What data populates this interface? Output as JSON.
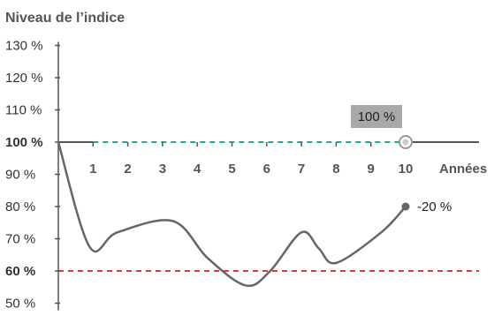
{
  "chart_data": {
    "type": "line",
    "title": "Niveau de l’indice",
    "xlabel": "Années",
    "ylabel": "",
    "xlim": [
      0,
      10
    ],
    "ylim": [
      50,
      130
    ],
    "x_ticks": [
      {
        "value": 1,
        "label": "1"
      },
      {
        "value": 2,
        "label": "2"
      },
      {
        "value": 3,
        "label": "3"
      },
      {
        "value": 4,
        "label": "4"
      },
      {
        "value": 5,
        "label": "5"
      },
      {
        "value": 6,
        "label": "6"
      },
      {
        "value": 7,
        "label": "7"
      },
      {
        "value": 8,
        "label": "8"
      },
      {
        "value": 9,
        "label": "9"
      },
      {
        "value": 10,
        "label": "10"
      }
    ],
    "y_ticks": [
      {
        "value": 130,
        "label": "130 %"
      },
      {
        "value": 120,
        "label": "120 %"
      },
      {
        "value": 110,
        "label": "110 %"
      },
      {
        "value": 100,
        "label": "100 %",
        "highlight": "teal"
      },
      {
        "value": 90,
        "label": "90 %"
      },
      {
        "value": 80,
        "label": "80 %"
      },
      {
        "value": 70,
        "label": "70 %"
      },
      {
        "value": 60,
        "label": "60 %",
        "highlight": "red"
      },
      {
        "value": 50,
        "label": "50 %"
      }
    ],
    "series": [
      {
        "points": [
          {
            "x": 0,
            "y": 100
          },
          {
            "x": 0.9,
            "y": 67.5
          },
          {
            "x": 1.7,
            "y": 72
          },
          {
            "x": 3.3,
            "y": 75.5
          },
          {
            "x": 4.3,
            "y": 64
          },
          {
            "x": 5.4,
            "y": 55.5
          },
          {
            "x": 6.1,
            "y": 60
          },
          {
            "x": 7.0,
            "y": 72
          },
          {
            "x": 7.5,
            "y": 67
          },
          {
            "x": 8.0,
            "y": 62.5
          },
          {
            "x": 9.3,
            "y": 72
          },
          {
            "x": 10,
            "y": 80
          }
        ],
        "color": "#666666"
      }
    ],
    "reference_lines": [
      {
        "y": 100,
        "color": "#1aab98",
        "style": "dashed",
        "x_from": 1,
        "x_to": 10
      },
      {
        "y": 60,
        "color": "#e03a3a",
        "style": "dashed"
      }
    ],
    "annotations": [
      {
        "text": "100 %",
        "x": 10,
        "y": 100,
        "marker": "open-circle",
        "label_box": true
      },
      {
        "text": "-20 %",
        "x": 10,
        "y": 80,
        "marker": "filled-circle"
      }
    ],
    "colors": {
      "teal": "#1aab98",
      "red": "#e03a3a",
      "line": "#666666",
      "axis": "#555555",
      "label_box": "#a8a8a8"
    }
  }
}
